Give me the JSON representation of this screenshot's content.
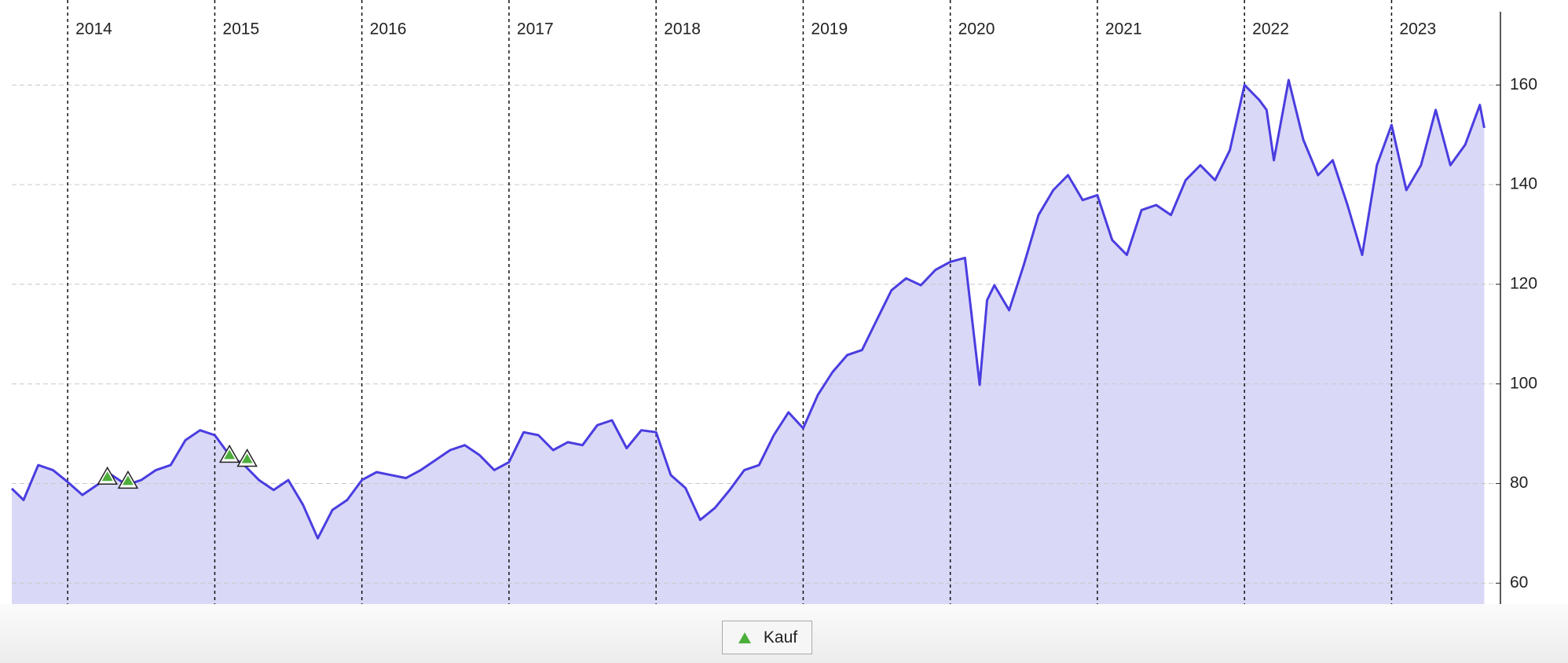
{
  "chart_data": {
    "type": "line",
    "x": [
      2013.62,
      2013.7,
      2013.8,
      2013.9,
      2014.0,
      2014.1,
      2014.2,
      2014.3,
      2014.4,
      2014.5,
      2014.6,
      2014.7,
      2014.8,
      2014.9,
      2015.0,
      2015.1,
      2015.2,
      2015.3,
      2015.4,
      2015.5,
      2015.6,
      2015.7,
      2015.8,
      2015.9,
      2016.0,
      2016.1,
      2016.2,
      2016.3,
      2016.4,
      2016.5,
      2016.6,
      2016.7,
      2016.8,
      2016.9,
      2017.0,
      2017.1,
      2017.2,
      2017.3,
      2017.4,
      2017.5,
      2017.6,
      2017.7,
      2017.8,
      2017.9,
      2018.0,
      2018.1,
      2018.2,
      2018.3,
      2018.4,
      2018.5,
      2018.6,
      2018.7,
      2018.8,
      2018.9,
      2019.0,
      2019.1,
      2019.2,
      2019.3,
      2019.4,
      2019.5,
      2019.6,
      2019.7,
      2019.8,
      2019.9,
      2020.0,
      2020.1,
      2020.2,
      2020.25,
      2020.3,
      2020.4,
      2020.5,
      2020.6,
      2020.7,
      2020.8,
      2020.9,
      2021.0,
      2021.1,
      2021.2,
      2021.3,
      2021.4,
      2021.5,
      2021.6,
      2021.7,
      2021.8,
      2021.9,
      2022.0,
      2022.1,
      2022.15,
      2022.2,
      2022.3,
      2022.4,
      2022.5,
      2022.6,
      2022.7,
      2022.8,
      2022.9,
      2023.0,
      2023.1,
      2023.2,
      2023.3,
      2023.4,
      2023.5,
      2023.6,
      2023.63
    ],
    "series": [
      {
        "color": "#4a3de0",
        "fill": "#dad8f7",
        "values": [
          79,
          76.7,
          83.7,
          82.7,
          80.3,
          77.7,
          79.7,
          81.7,
          79.7,
          80.7,
          82.7,
          83.7,
          88.7,
          90.7,
          89.7,
          85.7,
          83.7,
          80.7,
          78.7,
          80.7,
          75.7,
          69,
          74.7,
          76.7,
          80.7,
          82.3,
          81.7,
          81.1,
          82.7,
          84.7,
          86.7,
          87.7,
          85.7,
          82.7,
          84.3,
          90.3,
          89.7,
          86.7,
          88.3,
          87.7,
          91.7,
          92.7,
          87.1,
          90.7,
          90.3,
          81.7,
          79.1,
          72.7,
          75.1,
          78.7,
          82.7,
          83.7,
          89.7,
          94.3,
          91.1,
          97.8,
          102.4,
          105.8,
          106.8,
          112.8,
          118.8,
          121.2,
          119.8,
          122.9,
          124.5,
          125.3,
          99.8,
          116.8,
          119.8,
          114.8,
          123.9,
          133.9,
          138.9,
          141.9,
          136.9,
          137.9,
          128.9,
          125.9,
          134.9,
          135.9,
          133.9,
          140.9,
          143.9,
          140.9,
          146.9,
          160,
          157,
          155,
          144.9,
          161,
          149,
          141.9,
          144.9,
          135.9,
          125.9,
          143.9,
          152,
          138.9,
          143.9,
          155,
          143.9,
          148,
          156,
          151.4
        ]
      },
      {
        "name": "Kauf",
        "type": "scatter",
        "marker": "triangle",
        "color": "#4caf3a",
        "x": [
          2014.27,
          2014.41,
          2015.1,
          2015.22
        ],
        "values": [
          81.3,
          80.5,
          85.7,
          84.9
        ]
      }
    ],
    "xlim": [
      2013.62,
      2023.74
    ],
    "xticks": [
      2014,
      2015,
      2016,
      2017,
      2018,
      2019,
      2020,
      2021,
      2022,
      2023
    ],
    "ylim": [
      55.8,
      174.7
    ],
    "yticks": [
      60,
      80,
      100,
      120,
      140,
      160
    ],
    "yaxis_side": "right",
    "grid": true,
    "legend": "bottom"
  }
}
